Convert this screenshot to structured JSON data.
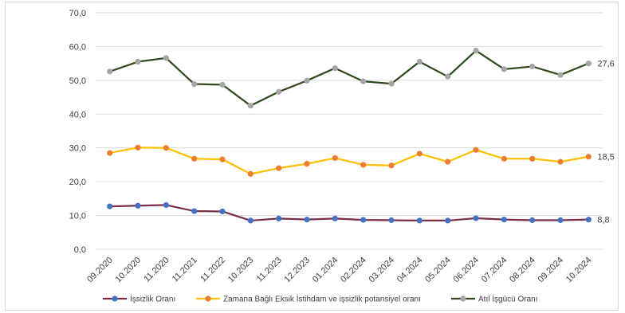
{
  "chart_data": {
    "type": "line",
    "ylim": [
      0,
      70
    ],
    "yticks": [
      "0,0",
      "10,0",
      "20,0",
      "30,0",
      "40,0",
      "50,0",
      "60,0",
      "70,0"
    ],
    "ytick_values": [
      0,
      10,
      20,
      30,
      40,
      50,
      60,
      70
    ],
    "grid": true,
    "legend_position": "bottom",
    "categories": [
      "09.2020",
      "10.2020",
      "11.2020",
      "11.2021",
      "11.2022",
      "10.2023",
      "11.2023",
      "12.2023",
      "01.2024",
      "02.2024",
      "03.2024",
      "04.2024",
      "05.2024",
      "06.2024",
      "07.2024",
      "08.2024",
      "09.2024",
      "10.2024"
    ],
    "series": [
      {
        "name": "İşsizlik Oranı",
        "line_color": "#7a2e48",
        "marker_color": "#4472c4",
        "values": [
          12.7,
          12.9,
          13.1,
          11.3,
          11.2,
          8.5,
          9.1,
          8.8,
          9.1,
          8.7,
          8.6,
          8.5,
          8.5,
          9.2,
          8.8,
          8.6,
          8.6,
          8.8
        ],
        "end_label": "8,8"
      },
      {
        "name": "Zamana Bağlı Eksik İstihdam ve işsizlik potansiyel oranı",
        "line_color": "#ffc000",
        "marker_color": "#ed7d31",
        "values": [
          28.5,
          30.1,
          30.0,
          26.8,
          26.6,
          22.3,
          24.0,
          25.3,
          27.0,
          25.0,
          24.8,
          28.3,
          25.9,
          29.4,
          26.8,
          26.8,
          25.9,
          27.4
        ],
        "end_label": "18,5"
      },
      {
        "name": "Atıl İşgücü Oranı",
        "line_color": "#2e4a1e",
        "marker_color": "#a5a5a5",
        "values": [
          52.6,
          55.5,
          56.6,
          48.9,
          48.7,
          42.5,
          46.6,
          49.9,
          53.6,
          49.7,
          49.0,
          55.5,
          51.1,
          58.8,
          53.3,
          54.1,
          51.6,
          55.0
        ],
        "end_label": "27,6"
      }
    ]
  }
}
